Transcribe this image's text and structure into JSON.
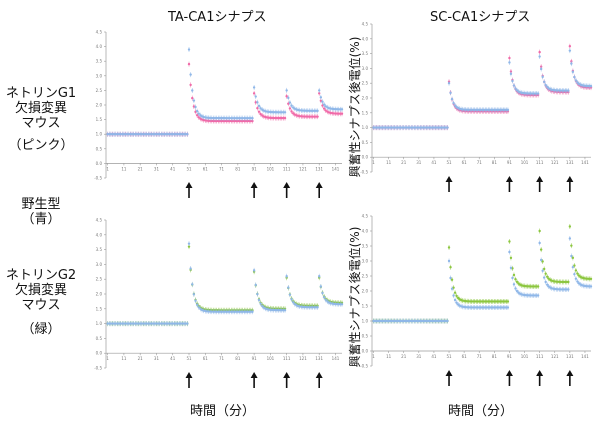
{
  "column_titles": {
    "left": "TA-CA1シナプス",
    "right": "SC-CA1シナプス"
  },
  "row_labels": {
    "g1_line1": "ネトリンG1",
    "g1_line2": "欠損変異",
    "g1_line3": "マウス",
    "g1_color": "（ピンク）",
    "wt_line1": "野生型",
    "wt_color": "（青）",
    "g2_line1": "ネトリンG2",
    "g2_line2": "欠損変異",
    "g2_line3": "マウス",
    "g2_color": "（緑）"
  },
  "ylabel": "興奮性シナプス後電位(%)",
  "xlabel": "時間（分）",
  "colors": {
    "pink": "#f06aa8",
    "blue": "#8fb7e8",
    "green": "#8cc63f",
    "axis": "#9a9a9a",
    "arrow": "#111111"
  },
  "chart_data": [
    {
      "type": "line",
      "panel": "top-left",
      "ylim": [
        -0.5,
        4.5
      ],
      "xlim": [
        0,
        145
      ],
      "ytick_values": [
        -0.5,
        0,
        0.5,
        1,
        1.5,
        2,
        2.5,
        3,
        3.5,
        4,
        4.5
      ],
      "xtick_values": [
        1,
        11,
        21,
        31,
        41,
        51,
        61,
        71,
        81,
        91,
        101,
        111,
        121,
        131,
        141
      ],
      "arrows_at": [
        51,
        91,
        111,
        131
      ],
      "series": [
        {
          "color": "pink",
          "baseline": 1.0,
          "baseline_start": 1,
          "baseline_end": 50,
          "segments": [
            {
              "start": 51,
              "end": 90,
              "peak": 3.4,
              "plateau": 1.45
            },
            {
              "start": 91,
              "end": 110,
              "peak": 2.4,
              "plateau": 1.55
            },
            {
              "start": 111,
              "end": 130,
              "peak": 2.3,
              "plateau": 1.6
            },
            {
              "start": 131,
              "end": 145,
              "peak": 2.4,
              "plateau": 1.7
            }
          ]
        },
        {
          "color": "blue",
          "baseline": 1.0,
          "baseline_start": 1,
          "baseline_end": 50,
          "segments": [
            {
              "start": 51,
              "end": 90,
              "peak": 3.9,
              "plateau": 1.55
            },
            {
              "start": 91,
              "end": 110,
              "peak": 2.6,
              "plateau": 1.75
            },
            {
              "start": 111,
              "end": 130,
              "peak": 2.5,
              "plateau": 1.8
            },
            {
              "start": 131,
              "end": 145,
              "peak": 2.5,
              "plateau": 1.85
            }
          ]
        }
      ]
    },
    {
      "type": "line",
      "panel": "top-right",
      "ylim": [
        -0.5,
        4.5
      ],
      "xlim": [
        0,
        145
      ],
      "ytick_values": [
        -0.5,
        0,
        0.5,
        1,
        1.5,
        2,
        2.5,
        3,
        3.5,
        4,
        4.5
      ],
      "xtick_values": [
        1,
        11,
        21,
        31,
        41,
        51,
        61,
        71,
        81,
        91,
        101,
        111,
        121,
        131,
        141
      ],
      "arrows_at": [
        51,
        91,
        111,
        131
      ],
      "series": [
        {
          "color": "pink",
          "baseline": 1.0,
          "baseline_start": 1,
          "baseline_end": 50,
          "segments": [
            {
              "start": 51,
              "end": 90,
              "peak": 2.55,
              "plateau": 1.55
            },
            {
              "start": 91,
              "end": 110,
              "peak": 3.35,
              "plateau": 2.1
            },
            {
              "start": 111,
              "end": 130,
              "peak": 3.55,
              "plateau": 2.2
            },
            {
              "start": 131,
              "end": 145,
              "peak": 3.75,
              "plateau": 2.35
            }
          ]
        },
        {
          "color": "blue",
          "baseline": 1.0,
          "baseline_start": 1,
          "baseline_end": 50,
          "segments": [
            {
              "start": 51,
              "end": 90,
              "peak": 2.5,
              "plateau": 1.6
            },
            {
              "start": 91,
              "end": 110,
              "peak": 3.2,
              "plateau": 2.15
            },
            {
              "start": 111,
              "end": 130,
              "peak": 3.4,
              "plateau": 2.25
            },
            {
              "start": 131,
              "end": 145,
              "peak": 3.6,
              "plateau": 2.4
            }
          ]
        }
      ]
    },
    {
      "type": "line",
      "panel": "bottom-left",
      "ylim": [
        -0.5,
        4.5
      ],
      "xlim": [
        0,
        145
      ],
      "ytick_values": [
        -0.5,
        0,
        0.5,
        1,
        1.5,
        2,
        2.5,
        3,
        3.5,
        4,
        4.5
      ],
      "xtick_values": [
        1,
        11,
        21,
        31,
        41,
        51,
        61,
        71,
        81,
        91,
        101,
        111,
        121,
        131,
        141
      ],
      "arrows_at": [
        51,
        91,
        111,
        131
      ],
      "series": [
        {
          "color": "green",
          "baseline": 1.0,
          "baseline_start": 1,
          "baseline_end": 50,
          "segments": [
            {
              "start": 51,
              "end": 90,
              "peak": 3.6,
              "plateau": 1.45
            },
            {
              "start": 91,
              "end": 110,
              "peak": 2.75,
              "plateau": 1.5
            },
            {
              "start": 111,
              "end": 130,
              "peak": 2.55,
              "plateau": 1.6
            },
            {
              "start": 131,
              "end": 145,
              "peak": 2.55,
              "plateau": 1.7
            }
          ]
        },
        {
          "color": "blue",
          "baseline": 1.0,
          "baseline_start": 1,
          "baseline_end": 50,
          "segments": [
            {
              "start": 51,
              "end": 90,
              "peak": 3.7,
              "plateau": 1.4
            },
            {
              "start": 91,
              "end": 110,
              "peak": 2.8,
              "plateau": 1.45
            },
            {
              "start": 111,
              "end": 130,
              "peak": 2.6,
              "plateau": 1.55
            },
            {
              "start": 131,
              "end": 145,
              "peak": 2.6,
              "plateau": 1.65
            }
          ]
        }
      ]
    },
    {
      "type": "line",
      "panel": "bottom-right",
      "ylim": [
        -0.5,
        4.5
      ],
      "xlim": [
        0,
        145
      ],
      "ytick_values": [
        -0.5,
        0,
        0.5,
        1,
        1.5,
        2,
        2.5,
        3,
        3.5,
        4,
        4.5
      ],
      "xtick_values": [
        1,
        11,
        21,
        31,
        41,
        51,
        61,
        71,
        81,
        91,
        101,
        111,
        121,
        131,
        141
      ],
      "arrows_at": [
        51,
        91,
        111,
        131
      ],
      "series": [
        {
          "color": "green",
          "baseline": 1.0,
          "baseline_start": 1,
          "baseline_end": 50,
          "segments": [
            {
              "start": 51,
              "end": 90,
              "peak": 3.45,
              "plateau": 1.65
            },
            {
              "start": 91,
              "end": 110,
              "peak": 3.65,
              "plateau": 2.15
            },
            {
              "start": 111,
              "end": 130,
              "peak": 4.0,
              "plateau": 2.3
            },
            {
              "start": 131,
              "end": 145,
              "peak": 4.15,
              "plateau": 2.4
            }
          ]
        },
        {
          "color": "blue",
          "baseline": 1.0,
          "baseline_start": 1,
          "baseline_end": 50,
          "segments": [
            {
              "start": 51,
              "end": 90,
              "peak": 3.0,
              "plateau": 1.45
            },
            {
              "start": 91,
              "end": 110,
              "peak": 3.3,
              "plateau": 1.85
            },
            {
              "start": 111,
              "end": 130,
              "peak": 3.6,
              "plateau": 2.05
            },
            {
              "start": 131,
              "end": 145,
              "peak": 3.75,
              "plateau": 2.15
            }
          ]
        }
      ]
    }
  ]
}
